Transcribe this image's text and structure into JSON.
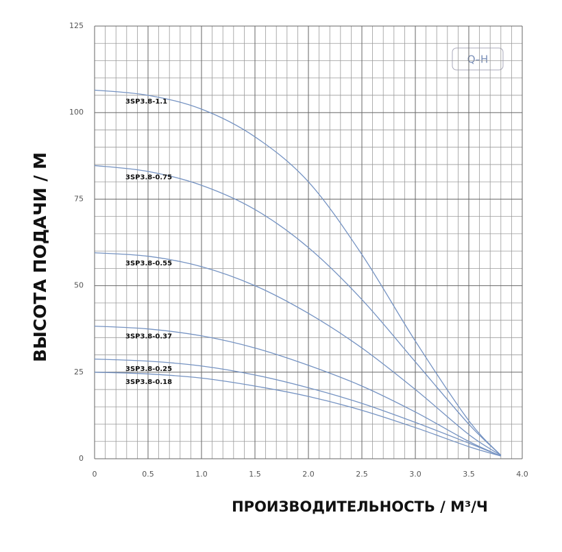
{
  "chart_data": {
    "type": "line",
    "title": "Q–H",
    "x_label": "ПРОИЗВОДИТЕЛЬНОСТЬ / М³/Ч",
    "y_label": "ВЫСОТА ПОДАЧИ / М",
    "x": [
      0,
      0.5,
      1,
      1.5,
      2,
      2.5,
      3,
      3.5,
      3.8
    ],
    "series": [
      {
        "name": "3SP3.8-1.1",
        "color": "#7492c2",
        "values": [
          106.5,
          105,
          101,
          93,
          80,
          59,
          34,
          11,
          1
        ]
      },
      {
        "name": "3SP3.8-0.75",
        "color": "#7492c2",
        "values": [
          84.7,
          83,
          79,
          72,
          61,
          46,
          28,
          10,
          1
        ]
      },
      {
        "name": "3SP3.8-0.55",
        "color": "#7492c2",
        "values": [
          59.5,
          58.5,
          55.5,
          50,
          42,
          32,
          20,
          7,
          1
        ]
      },
      {
        "name": "3SP3.8-0.37",
        "color": "#7492c2",
        "values": [
          38.3,
          37.5,
          35.5,
          32,
          27,
          21,
          13.5,
          5,
          0.8
        ]
      },
      {
        "name": "3SP3.8-0.25",
        "color": "#7492c2",
        "values": [
          28.8,
          28.2,
          26.8,
          24.2,
          20.5,
          16,
          10.5,
          4.5,
          0.8
        ]
      },
      {
        "name": "3SP3.8-0.18",
        "color": "#7492c2",
        "values": [
          25,
          24.5,
          23.3,
          21,
          18,
          14,
          9,
          3.5,
          0.8
        ]
      }
    ],
    "xlim": [
      0,
      4
    ],
    "ylim": [
      0,
      125
    ],
    "xticks": [
      0,
      0.5,
      {
        "value": 1,
        "label": "1.0"
      },
      1.5,
      {
        "value": 2,
        "label": "2.0"
      },
      2.5,
      {
        "value": 3,
        "label": "3.0"
      },
      3.5,
      {
        "value": 4,
        "label": "4.0"
      }
    ],
    "yticks": [
      0,
      25,
      50,
      75,
      100,
      125
    ],
    "grid": true
  }
}
